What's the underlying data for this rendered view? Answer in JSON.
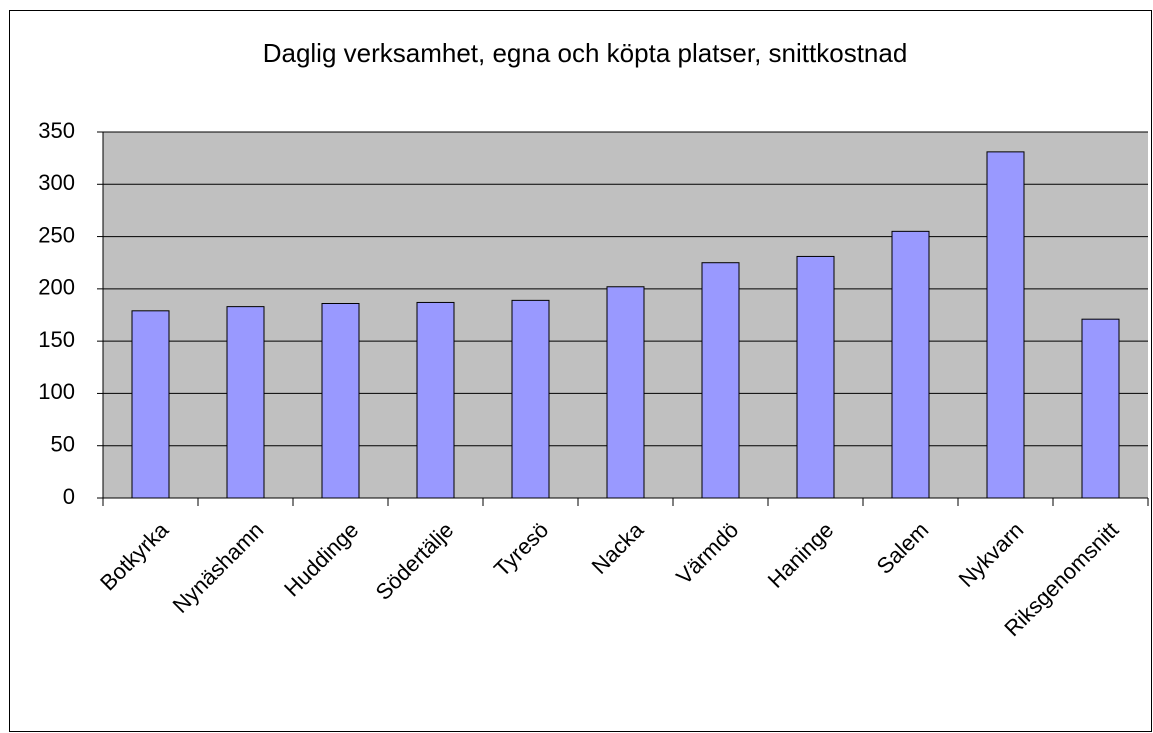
{
  "chart_data": {
    "type": "bar",
    "title": "Daglig verksamhet, egna och köpta platser, snittkostnad",
    "categories": [
      "Botkyrka",
      "Nynäshamn",
      "Huddinge",
      "Södertälje",
      "Tyresö",
      "Nacka",
      "Värmdö",
      "Haninge",
      "Salem",
      "Nykvarn",
      "Riksgenomsnitt"
    ],
    "values": [
      179,
      183,
      186,
      187,
      189,
      202,
      225,
      231,
      255,
      331,
      171
    ],
    "color": "#9999ff",
    "ylim": [
      0,
      350
    ],
    "yticks": [
      0,
      50,
      100,
      150,
      200,
      250,
      300,
      350
    ],
    "grid": true
  }
}
